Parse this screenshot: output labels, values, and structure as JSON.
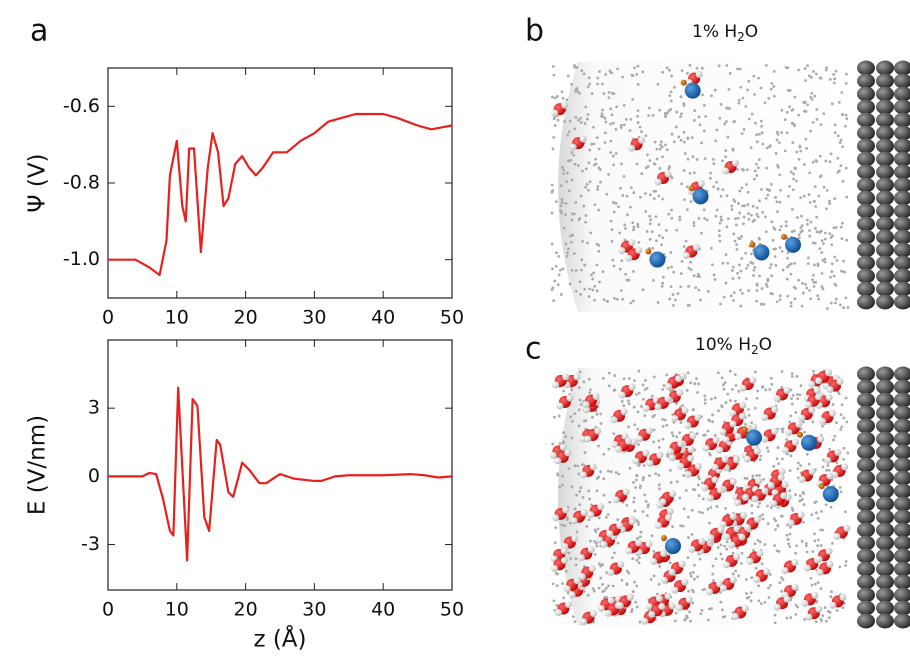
{
  "chart_data": [
    {
      "type": "line",
      "ylabel": "Ψ (V)",
      "color": "#e8201c",
      "x": [
        0,
        4,
        6,
        7.5,
        8.5,
        9,
        10,
        10.8,
        11.3,
        11.8,
        12.5,
        13.5,
        14.5,
        15.2,
        16,
        16.8,
        17.5,
        18.5,
        19.5,
        20.5,
        21.5,
        22.5,
        24,
        26,
        28,
        30,
        32,
        34,
        36,
        40,
        42,
        45,
        47,
        50
      ],
      "values": [
        -1.0,
        -1.0,
        -1.02,
        -1.04,
        -0.95,
        -0.78,
        -0.69,
        -0.86,
        -0.9,
        -0.71,
        -0.71,
        -0.98,
        -0.76,
        -0.67,
        -0.72,
        -0.86,
        -0.84,
        -0.75,
        -0.73,
        -0.76,
        -0.78,
        -0.76,
        -0.72,
        -0.72,
        -0.69,
        -0.67,
        -0.64,
        -0.63,
        -0.62,
        -0.62,
        -0.63,
        -0.65,
        -0.66,
        -0.65
      ],
      "xlim": [
        0,
        50
      ],
      "xticks": [
        0,
        10,
        20,
        30,
        40,
        50
      ],
      "ylim": [
        -1.1,
        -0.5
      ],
      "yticks": [
        {
          "value": -1,
          "label": "-1.0"
        },
        -0.8,
        -0.6
      ]
    },
    {
      "type": "line",
      "ylabel": "E (V/nm)",
      "xlabel": "z (Å)",
      "color": "#e8201c",
      "x": [
        0,
        5,
        6,
        7,
        8,
        9,
        9.5,
        10.2,
        11.5,
        12.3,
        13,
        14,
        14.7,
        15.8,
        16.3,
        17.5,
        18.2,
        19.5,
        20.5,
        22,
        23,
        25,
        27,
        30,
        31,
        33,
        35,
        40,
        44,
        46,
        48,
        50
      ],
      "values": [
        0,
        0,
        0.15,
        0.1,
        -1,
        -2.4,
        -2.6,
        3.9,
        -3.7,
        3.4,
        3.1,
        -1.8,
        -2.4,
        1.6,
        1.4,
        -0.7,
        -0.9,
        0.6,
        0.3,
        -0.3,
        -0.3,
        0.1,
        -0.1,
        -0.2,
        -0.2,
        0,
        0.05,
        0.05,
        0.1,
        0.05,
        -0.05,
        0
      ],
      "xlim": [
        0,
        50
      ],
      "xticks": [
        0,
        10,
        20,
        30,
        40,
        50
      ],
      "ylim": [
        -5,
        6
      ],
      "yticks": [
        -3,
        0,
        3
      ]
    }
  ],
  "panel_labels": [
    "a",
    "b",
    "c"
  ],
  "captions": [
    {
      "text": "1% H",
      "sub": "2",
      "after": "O"
    },
    {
      "text": "10% H",
      "sub": "2",
      "after": "O"
    }
  ]
}
